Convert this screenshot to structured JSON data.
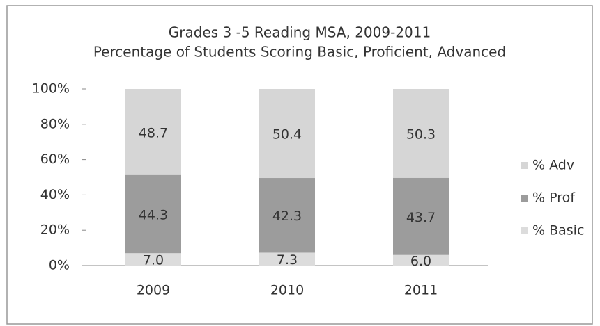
{
  "chart_data": {
    "type": "stacked_bar",
    "title": "Grades 3 -5 Reading MSA, 2009-2011",
    "subtitle": "Percentage of Students Scoring Basic, Proficient, Advanced",
    "categories": [
      "2009",
      "2010",
      "2011"
    ],
    "series": [
      {
        "name": "% Basic",
        "color": "#dcdcdc",
        "values": [
          7.0,
          7.3,
          6.0
        ],
        "value_labels": [
          "7.0",
          "7.3",
          "6.0"
        ]
      },
      {
        "name": "% Prof",
        "color": "#9c9c9c",
        "values": [
          44.3,
          42.3,
          43.7
        ]
      },
      {
        "name": "% Adv",
        "color": "#d6d6d6",
        "values": [
          48.7,
          50.4,
          50.3
        ]
      }
    ],
    "ylim": [
      0,
      100
    ],
    "yticks": [
      {
        "value": 0,
        "label": "0%"
      },
      {
        "value": 20,
        "label": "20%"
      },
      {
        "value": 40,
        "label": "40%"
      },
      {
        "value": 60,
        "label": "60%"
      },
      {
        "value": 80,
        "label": "80%"
      },
      {
        "value": 100,
        "label": "100%"
      }
    ],
    "legend": "right"
  }
}
